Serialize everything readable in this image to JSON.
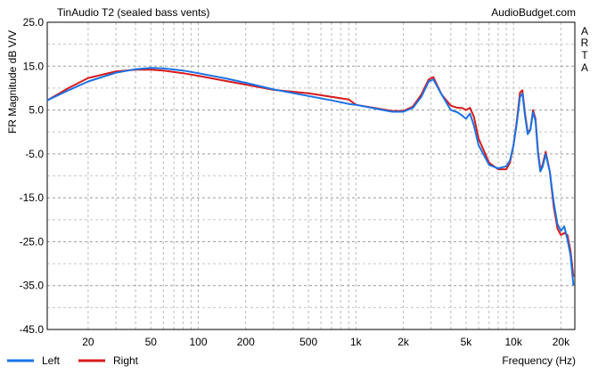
{
  "header": {
    "title": "TinAudio T2 (sealed bass vents)",
    "brand": "AudioBudget.com"
  },
  "side_text": [
    "A",
    "R",
    "T",
    "A"
  ],
  "legend": {
    "left_label": "Left",
    "right_label": "Right"
  },
  "chart_data": {
    "type": "line",
    "ylabel": "FR Magnitude dB V/V",
    "xlabel": "Frequency (Hz)",
    "x_scale": "log",
    "xlim": [
      11,
      24500
    ],
    "ylim": [
      -45,
      25
    ],
    "grid": true,
    "y_ticks": [
      "25.0",
      "15.0",
      "5.0",
      "-5.0",
      "-15.0",
      "-25.0",
      "-35.0",
      "-45.0"
    ],
    "y_tick_values": [
      25,
      15,
      5,
      -5,
      -15,
      -25,
      -35,
      -45
    ],
    "x_ticks": [
      "20",
      "50",
      "100",
      "200",
      "500",
      "1k",
      "2k",
      "5k",
      "10k",
      "20k"
    ],
    "x_tick_values": [
      20,
      50,
      100,
      200,
      500,
      1000,
      2000,
      5000,
      10000,
      20000
    ],
    "colors": {
      "left": "#1a73e8",
      "right": "#d81b1b"
    },
    "series": [
      {
        "name": "Left",
        "x": [
          11,
          15,
          20,
          30,
          40,
          50,
          60,
          80,
          100,
          150,
          200,
          300,
          500,
          700,
          900,
          1000,
          1300,
          1700,
          2000,
          2300,
          2600,
          2900,
          3100,
          3500,
          4000,
          4400,
          4700,
          5000,
          5300,
          5600,
          6000,
          7000,
          8000,
          9000,
          9500,
          10000,
          10500,
          11000,
          11400,
          11800,
          12300,
          12800,
          13300,
          13800,
          14300,
          14800,
          15300,
          16000,
          17000,
          18000,
          19000,
          20000,
          21000,
          22000,
          23000,
          24000
        ],
        "values": [
          7.2,
          9.5,
          11.5,
          13.5,
          14.3,
          14.6,
          14.5,
          14.0,
          13.4,
          12.2,
          11.2,
          9.7,
          8.2,
          7.2,
          6.4,
          6.2,
          5.4,
          4.6,
          4.6,
          5.5,
          8.0,
          11.5,
          12.0,
          8.5,
          5.0,
          4.5,
          3.8,
          3.0,
          4.2,
          1.5,
          -3.0,
          -7.5,
          -8.3,
          -7.8,
          -6.5,
          -3.0,
          2.0,
          8.0,
          8.8,
          4.0,
          -0.5,
          0.5,
          4.5,
          2.5,
          -5.0,
          -9.0,
          -8.0,
          -5.0,
          -9.0,
          -16.0,
          -21.0,
          -22.5,
          -21.5,
          -24.5,
          -28.0,
          -35.0
        ]
      },
      {
        "name": "Right",
        "x": [
          11,
          15,
          20,
          30,
          40,
          50,
          60,
          80,
          100,
          150,
          200,
          300,
          500,
          700,
          900,
          1000,
          1300,
          1700,
          2000,
          2300,
          2600,
          2900,
          3100,
          3500,
          4000,
          4400,
          4700,
          5000,
          5300,
          5600,
          6000,
          7000,
          8000,
          9000,
          9500,
          10000,
          10500,
          11000,
          11400,
          11800,
          12300,
          12800,
          13300,
          13800,
          14300,
          14800,
          15300,
          16000,
          17000,
          18000,
          19000,
          20000,
          21000,
          22000,
          23000,
          24000
        ],
        "values": [
          7.2,
          10.0,
          12.3,
          13.8,
          14.2,
          14.2,
          14.0,
          13.4,
          12.8,
          11.6,
          10.8,
          9.6,
          8.8,
          8.0,
          7.4,
          6.2,
          5.5,
          4.8,
          4.8,
          5.8,
          8.5,
          12.0,
          12.5,
          8.5,
          6.0,
          5.5,
          5.5,
          5.0,
          5.5,
          3.5,
          -1.5,
          -7.0,
          -8.5,
          -8.5,
          -7.0,
          -3.0,
          2.5,
          9.0,
          9.5,
          4.5,
          0.0,
          0.5,
          5.0,
          3.0,
          -4.5,
          -8.5,
          -7.5,
          -4.5,
          -9.0,
          -17.0,
          -22.0,
          -23.5,
          -23.0,
          -23.5,
          -27.0,
          -33.0
        ]
      }
    ]
  }
}
